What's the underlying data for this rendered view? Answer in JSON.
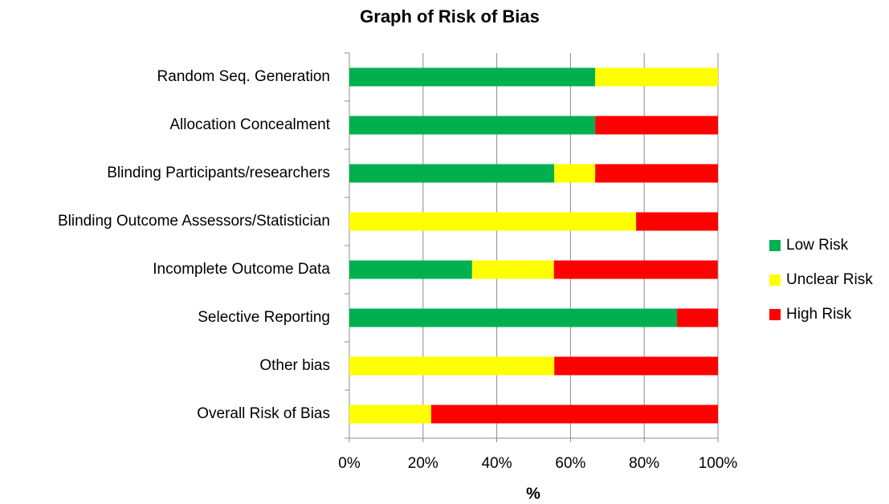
{
  "chart_data": {
    "type": "stacked-barh",
    "title": "Graph of Risk of Bias",
    "xlabel": "%",
    "categories": [
      "Random Seq. Generation",
      "Allocation Concealment",
      "Blinding Participants/researchers",
      "Blinding Outcome Assessors/Statistician",
      "Incomplete Outcome Data",
      "Selective Reporting",
      "Other bias",
      "Overall Risk of Bias"
    ],
    "series": [
      {
        "name": "Low Risk",
        "color": "#00b050",
        "values": [
          66.7,
          66.7,
          55.6,
          0,
          33.3,
          88.9,
          0,
          0
        ]
      },
      {
        "name": "Unclear Risk",
        "color": "#ffff00",
        "values": [
          33.3,
          0,
          11.1,
          77.8,
          22.2,
          0,
          55.6,
          22.2
        ]
      },
      {
        "name": "High Risk",
        "color": "#ff0000",
        "values": [
          0,
          33.3,
          33.3,
          22.2,
          44.4,
          11.1,
          44.4,
          77.8
        ]
      }
    ],
    "xlim": [
      0,
      100
    ],
    "xticks": [
      {
        "value": 0,
        "label": "0%"
      },
      {
        "value": 20,
        "label": "20%"
      },
      {
        "value": 40,
        "label": "40%"
      },
      {
        "value": 60,
        "label": "60%"
      },
      {
        "value": 80,
        "label": "80%"
      },
      {
        "value": 100,
        "label": "100%"
      }
    ],
    "grid": true,
    "legend": "right"
  }
}
